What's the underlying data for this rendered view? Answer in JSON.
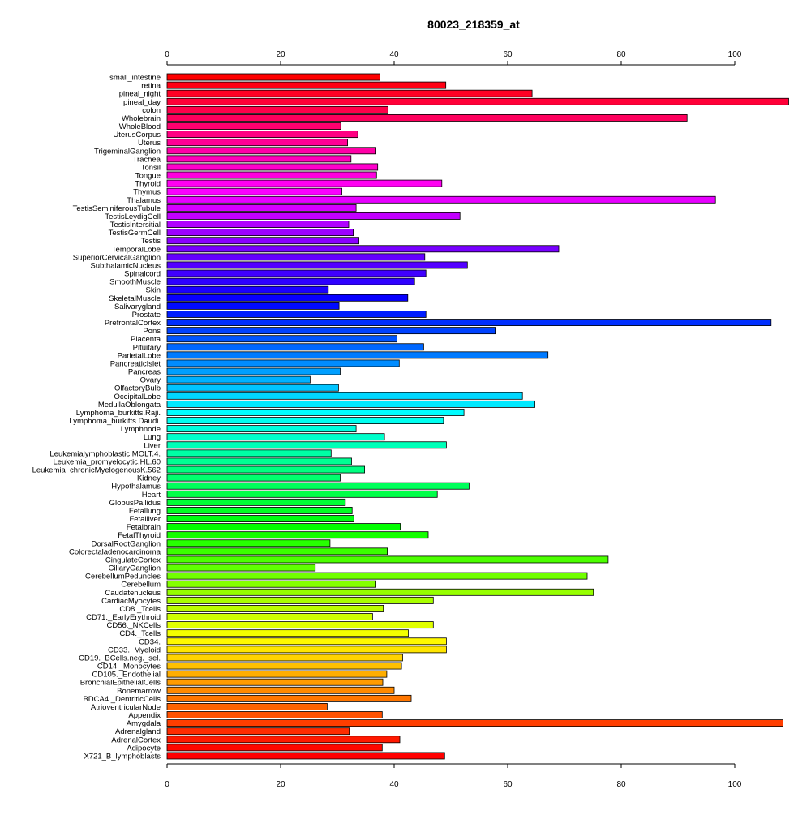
{
  "chart_data": {
    "type": "bar",
    "orientation": "horizontal",
    "title": "80023_218359_at",
    "xlabel": "",
    "ylabel": "",
    "xlim": [
      0,
      108
    ],
    "xticks": [
      0,
      20,
      40,
      60,
      80,
      100
    ],
    "xtick_labels": [
      "0",
      "20",
      "40",
      "60",
      "80",
      "100"
    ],
    "axes": "top and bottom",
    "grid": false,
    "legend": "none",
    "bar_border_color": "#000000",
    "color_scheme": "rainbow",
    "categories": [
      "small_intestine",
      "retina",
      "pineal_night",
      "pineal_day",
      "colon",
      "Wholebrain",
      "WholeBlood",
      "UterusCorpus",
      "Uterus",
      "TrigeminalGanglion",
      "Trachea",
      "Tonsil",
      "Tongue",
      "Thyroid",
      "Thymus",
      "Thalamus",
      "TestisSeminiferousTubule",
      "TestisLeydigCell",
      "TestisIntersitial",
      "TestisGermCell",
      "Testis",
      "TemporalLobe",
      "SuperiorCervicalGanglion",
      "SubthalamicNucleus",
      "Spinalcord",
      "SmoothMuscle",
      "Skin",
      "SkeletalMuscle",
      "Salivarygland",
      "Prostate",
      "PrefrontalCortex",
      "Pons",
      "Placenta",
      "Pituitary",
      "ParietalLobe",
      "PancreaticIslet",
      "Pancreas",
      "Ovary",
      "OlfactoryBulb",
      "OccipitalLobe",
      "MedullaOblongata",
      "Lymphoma_burkitts.Raji.",
      "Lymphoma_burkitts.Daudi.",
      "Lymphnode",
      "Lung",
      "Liver",
      "Leukemialymphoblastic.MOLT.4.",
      "Leukemia_promyelocytic.HL.60",
      "Leukemia_chronicMyelogenousK.562",
      "Kidney",
      "Hypothalamus",
      "Heart",
      "GlobusPallidus",
      "Fetallung",
      "Fetalliver",
      "Fetalbrain",
      "FetalThyroid",
      "DorsalRootGanglion",
      "Colorectaladenocarcinoma",
      "CingulateCortex",
      "CiliaryGanglion",
      "CerebellumPeduncles",
      "Cerebellum",
      "Caudatenucleus",
      "CardiacMyocytes",
      "CD8._Tcells",
      "CD71._EarlyErythroid",
      "CD56._NKCells",
      "CD4._Tcells",
      "CD34.",
      "CD33._Myeloid",
      "CD19._BCells.neg._sel.",
      "CD14._Monocytes",
      "CD105._Endothelial",
      "BronchialEpithelialCells",
      "Bonemarrow",
      "BDCA4._DentriticCells",
      "AtrioventricularNode",
      "Appendix",
      "Amygdala",
      "Adrenalgland",
      "AdrenalCortex",
      "Adipocyte",
      "X721_B_lymphoblasts"
    ],
    "values": [
      37.5,
      49.1,
      64.3,
      109.5,
      38.9,
      91.6,
      30.6,
      33.6,
      31.8,
      36.8,
      32.4,
      37.1,
      36.9,
      48.4,
      30.8,
      96.6,
      33.3,
      51.6,
      32.0,
      32.8,
      33.8,
      69.0,
      45.4,
      52.9,
      45.6,
      43.6,
      28.4,
      42.4,
      30.3,
      45.6,
      106.4,
      57.8,
      40.5,
      45.2,
      67.1,
      40.9,
      30.5,
      25.2,
      30.2,
      62.6,
      64.8,
      52.3,
      48.7,
      33.3,
      38.3,
      49.2,
      28.9,
      32.5,
      34.8,
      30.5,
      53.2,
      47.6,
      31.4,
      32.6,
      32.9,
      41.1,
      46.0,
      28.7,
      38.8,
      77.7,
      26.1,
      74.0,
      36.8,
      75.1,
      46.9,
      38.1,
      36.2,
      46.9,
      42.5,
      49.2,
      49.2,
      41.5,
      41.3,
      38.7,
      38.0,
      40.0,
      43.0,
      28.2,
      37.9,
      108.5,
      32.1,
      41.0,
      37.9,
      48.9
    ]
  }
}
